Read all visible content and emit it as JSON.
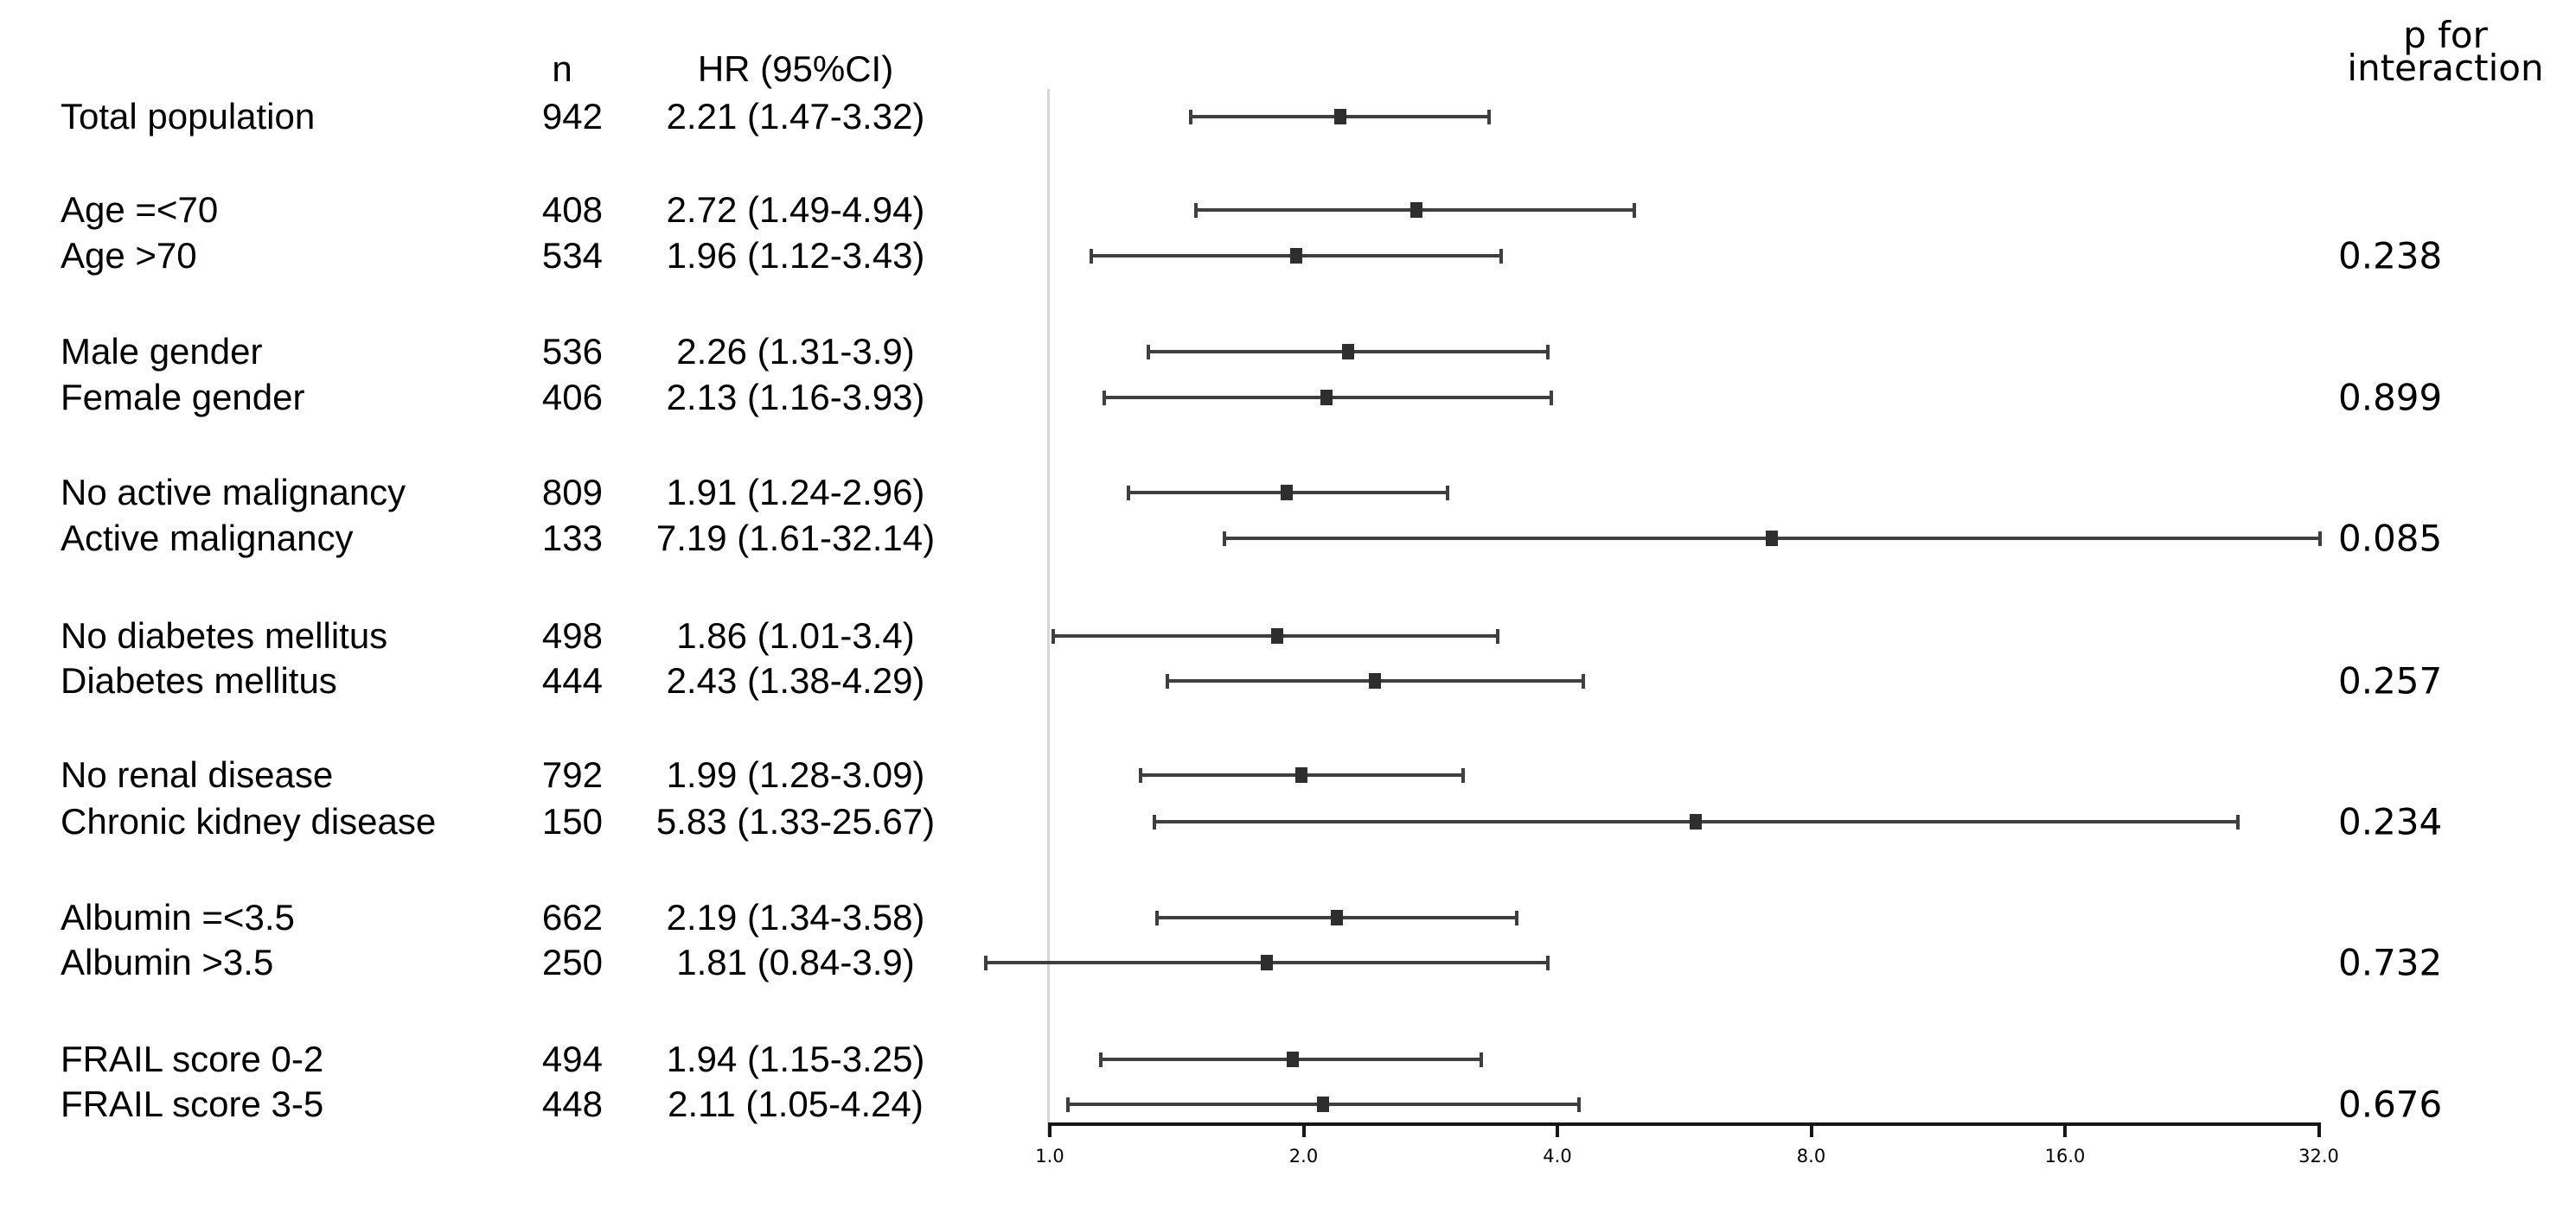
{
  "chart_data": {
    "type": "forest",
    "title": "",
    "columns": {
      "n_header": "n",
      "hr_header": "HR (95%CI)",
      "p_header_line1": "p for",
      "p_header_line2": "interaction"
    },
    "axis": {
      "scale": "log2",
      "ticks": [
        1.0,
        2.0,
        4.0,
        8.0,
        16.0,
        32.0
      ],
      "tick_labels": [
        "1.0",
        "2.0",
        "4.0",
        "8.0",
        "16.0",
        "32.0"
      ],
      "reference_line": 1.0,
      "xlim": [
        1.0,
        32.0
      ]
    },
    "colors": {
      "ci_line": "#3f3f3f",
      "marker": "#2e2e2e",
      "axis": "#161616",
      "reference_line": "#d6d6d6",
      "text": "#000000"
    },
    "rows": [
      {
        "label": "Total population",
        "n": "942",
        "hr_text": "2.21 (1.47-3.32)",
        "hr": 2.21,
        "lo": 1.47,
        "hi": 3.32,
        "p": "",
        "group": 0
      },
      {
        "label": "Age =<70",
        "n": "408",
        "hr_text": "2.72 (1.49-4.94)",
        "hr": 2.72,
        "lo": 1.49,
        "hi": 4.94,
        "p": "",
        "group": 1
      },
      {
        "label": "Age >70",
        "n": "534",
        "hr_text": "1.96 (1.12-3.43)",
        "hr": 1.96,
        "lo": 1.12,
        "hi": 3.43,
        "p": "0.238",
        "group": 1
      },
      {
        "label": "Male gender",
        "n": "536",
        "hr_text": "2.26 (1.31-3.9)",
        "hr": 2.26,
        "lo": 1.31,
        "hi": 3.9,
        "p": "",
        "group": 2
      },
      {
        "label": "Female gender",
        "n": "406",
        "hr_text": "2.13 (1.16-3.93)",
        "hr": 2.13,
        "lo": 1.16,
        "hi": 3.93,
        "p": "0.899",
        "group": 2
      },
      {
        "label": "No active malignancy",
        "n": "809",
        "hr_text": "1.91 (1.24-2.96)",
        "hr": 1.91,
        "lo": 1.24,
        "hi": 2.96,
        "p": "",
        "group": 3
      },
      {
        "label": "Active malignancy",
        "n": "133",
        "hr_text": "7.19 (1.61-32.14)",
        "hr": 7.19,
        "lo": 1.61,
        "hi": 32.14,
        "p": "0.085",
        "group": 3
      },
      {
        "label": "No diabetes mellitus",
        "n": "498",
        "hr_text": "1.86 (1.01-3.4)",
        "hr": 1.86,
        "lo": 1.01,
        "hi": 3.4,
        "p": "",
        "group": 4
      },
      {
        "label": "Diabetes mellitus",
        "n": "444",
        "hr_text": "2.43 (1.38-4.29)",
        "hr": 2.43,
        "lo": 1.38,
        "hi": 4.29,
        "p": "0.257",
        "group": 4
      },
      {
        "label": "No renal disease",
        "n": "792",
        "hr_text": "1.99 (1.28-3.09)",
        "hr": 1.99,
        "lo": 1.28,
        "hi": 3.09,
        "p": "",
        "group": 5
      },
      {
        "label": "Chronic kidney disease",
        "n": "150",
        "hr_text": "5.83 (1.33-25.67)",
        "hr": 5.83,
        "lo": 1.33,
        "hi": 25.67,
        "p": "0.234",
        "group": 5
      },
      {
        "label": "Albumin =<3.5",
        "n": "662",
        "hr_text": "2.19 (1.34-3.58)",
        "hr": 2.19,
        "lo": 1.34,
        "hi": 3.58,
        "p": "",
        "group": 6
      },
      {
        "label": "Albumin >3.5",
        "n": "250",
        "hr_text": "1.81 (0.84-3.9)",
        "hr": 1.81,
        "lo": 0.84,
        "hi": 3.9,
        "p": "0.732",
        "group": 6
      },
      {
        "label": "FRAIL score 0-2",
        "n": "494",
        "hr_text": "1.94 (1.15-3.25)",
        "hr": 1.94,
        "lo": 1.15,
        "hi": 3.25,
        "p": "",
        "group": 7
      },
      {
        "label": "FRAIL score 3-5",
        "n": "448",
        "hr_text": "2.11 (1.05-4.24)",
        "hr": 2.11,
        "lo": 1.05,
        "hi": 4.24,
        "p": "0.676",
        "group": 7
      }
    ]
  }
}
